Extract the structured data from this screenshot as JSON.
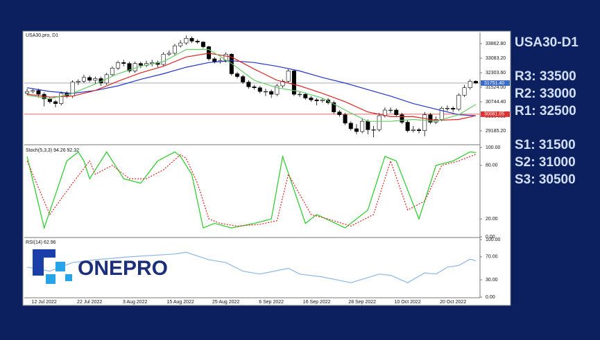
{
  "sidebar": {
    "title": "USA30-D1",
    "levels": [
      "R3: 33500",
      "R2: 33000",
      "R1: 32500",
      "S1: 31500",
      "S2: 31000",
      "S3: 30500"
    ]
  },
  "logo": "ONEPRO",
  "chart_data": [
    {
      "type": "candlestick",
      "title": "USA30.pro, D1",
      "categories": [
        null,
        null,
        null,
        "12 Jul 2022",
        null,
        null,
        null,
        null,
        null,
        null,
        null,
        "22 Jul 2022",
        null,
        null,
        null,
        null,
        null,
        null,
        null,
        "3 Aug 2022",
        null,
        null,
        null,
        null,
        null,
        null,
        null,
        "15 Aug 2022",
        null,
        null,
        null,
        null,
        null,
        null,
        null,
        "25 Aug 2022",
        null,
        null,
        null,
        null,
        null,
        null,
        null,
        "6 Sep 2022",
        null,
        null,
        null,
        null,
        null,
        null,
        null,
        "16 Sep 2022",
        null,
        null,
        null,
        null,
        null,
        null,
        null,
        "28 Sep 2022",
        null,
        null,
        null,
        null,
        null,
        null,
        null,
        "10 Oct 2022",
        null,
        null,
        null,
        null,
        null,
        null,
        null,
        "20 Oct 2022",
        null,
        null,
        null,
        null
      ],
      "open": [
        31200,
        31300,
        31350,
        31150,
        30900,
        30750,
        30650,
        31200,
        31050,
        31800,
        31850,
        32050,
        31900,
        31990,
        31750,
        32200,
        32550,
        32850,
        32800,
        32400,
        32800,
        32700,
        32800,
        32850,
        32750,
        33300,
        33350,
        33750,
        33900,
        34150,
        34000,
        33950,
        33700,
        33050,
        32900,
        32950,
        33300,
        32250,
        32100,
        31800,
        31550,
        31500,
        31300,
        31300,
        31150,
        31600,
        31850,
        32400,
        31150,
        31150,
        30950,
        30850,
        30800,
        30850,
        30700,
        30200,
        30050,
        29600,
        29300,
        29150,
        29700,
        29250,
        29250,
        30000,
        30300,
        30300,
        30050,
        29650,
        29200,
        29250,
        29200,
        30050,
        29650,
        29800,
        30400,
        30400,
        30350,
        31100,
        31500,
        31850
      ],
      "high": [
        31450,
        31450,
        31450,
        31250,
        31000,
        30850,
        31300,
        31300,
        31900,
        31950,
        32200,
        32150,
        32100,
        32100,
        32300,
        32650,
        32950,
        33000,
        32900,
        32900,
        32900,
        32950,
        33000,
        32950,
        33400,
        33500,
        33850,
        34050,
        34300,
        34250,
        34100,
        34000,
        33750,
        33150,
        33100,
        33400,
        33350,
        32350,
        32200,
        31900,
        31650,
        31600,
        31450,
        31400,
        31700,
        31950,
        32500,
        32450,
        31300,
        31250,
        31050,
        30950,
        30950,
        30950,
        30800,
        30300,
        30150,
        29700,
        29550,
        29850,
        29800,
        29450,
        30150,
        30450,
        30450,
        30400,
        30150,
        29750,
        29450,
        29350,
        30200,
        30150,
        29950,
        30500,
        30550,
        30500,
        31200,
        31650,
        31950,
        31900
      ],
      "low": [
        31100,
        31200,
        31000,
        30500,
        30650,
        30450,
        30550,
        30950,
        30950,
        31650,
        31750,
        31800,
        31700,
        31600,
        31650,
        32100,
        32450,
        32650,
        32300,
        32300,
        32550,
        32600,
        32650,
        32600,
        32650,
        33200,
        33250,
        33650,
        33800,
        33900,
        33850,
        33600,
        32950,
        32800,
        32800,
        32850,
        32150,
        32000,
        31700,
        31450,
        31400,
        31200,
        31050,
        30950,
        31050,
        31500,
        31750,
        31050,
        31000,
        30850,
        30750,
        30550,
        30700,
        30600,
        30100,
        29950,
        29500,
        29200,
        29000,
        29050,
        29000,
        28850,
        29150,
        29900,
        30150,
        29950,
        29550,
        29100,
        29100,
        29050,
        28900,
        29550,
        29550,
        29700,
        30250,
        30200,
        30250,
        31000,
        31400,
        31700
      ],
      "close": [
        31300,
        31350,
        31150,
        30900,
        30750,
        30650,
        31200,
        31050,
        31800,
        31850,
        32050,
        31900,
        31990,
        31750,
        32200,
        32550,
        32850,
        32800,
        32400,
        32800,
        32700,
        32800,
        32850,
        32750,
        33300,
        33350,
        33750,
        33900,
        34150,
        34000,
        33950,
        33700,
        33050,
        32900,
        32950,
        33300,
        32250,
        32100,
        31800,
        31550,
        31500,
        31300,
        31300,
        31150,
        31600,
        31850,
        32400,
        31150,
        31150,
        30950,
        30850,
        30800,
        30850,
        30700,
        30200,
        30050,
        29600,
        29300,
        29150,
        29700,
        29250,
        29250,
        30000,
        30300,
        30300,
        30050,
        29650,
        29200,
        29250,
        29200,
        30050,
        29650,
        29800,
        30400,
        30400,
        30350,
        31100,
        31500,
        31850,
        31750
      ],
      "series": [
        {
          "color": "#2233cc",
          "x": [
            0,
            4,
            8,
            12,
            16,
            20,
            24,
            28,
            32,
            36,
            40,
            44,
            48,
            52,
            56,
            60,
            64,
            68,
            72,
            76,
            79
          ],
          "values": [
            31500,
            31300,
            31200,
            31350,
            31600,
            31950,
            32250,
            32600,
            32850,
            32950,
            32850,
            32650,
            32400,
            32050,
            31750,
            31400,
            31050,
            30650,
            30350,
            30050,
            30000
          ]
        },
        {
          "color": "#dd2222",
          "x": [
            0,
            4,
            8,
            12,
            16,
            20,
            24,
            28,
            32,
            36,
            40,
            44,
            48,
            52,
            56,
            60,
            64,
            68,
            72,
            76,
            79
          ],
          "values": [
            31150,
            31000,
            31050,
            31350,
            31850,
            32300,
            32650,
            33150,
            33350,
            33150,
            32500,
            31900,
            31600,
            31200,
            30750,
            30200,
            29950,
            29950,
            29750,
            29800,
            30000
          ]
        },
        {
          "color": "#66cc66",
          "x": [
            0,
            4,
            8,
            12,
            16,
            20,
            24,
            28,
            32,
            36,
            40,
            44,
            48,
            52,
            56,
            60,
            64,
            68,
            72,
            76,
            79
          ],
          "values": [
            31100,
            30900,
            31200,
            31700,
            32250,
            32650,
            32900,
            33550,
            33550,
            32800,
            31900,
            31500,
            31300,
            30950,
            30300,
            29700,
            29700,
            29800,
            29700,
            30050,
            30600
          ]
        }
      ],
      "price_lines": [
        {
          "value": 31751.4,
          "label": "31751.40",
          "color": "#9aa0a8",
          "label_color": "#3b6cc8"
        },
        {
          "value": 30081.05,
          "label": "30081.05",
          "color": "#e03030",
          "label_color": "#e03030"
        }
      ],
      "ylim": [
        28480,
        34460
      ],
      "yticks": [
        {
          "value": 33862.8,
          "label": "33862.80"
        },
        {
          "value": 33083.2,
          "label": "33083.20"
        },
        {
          "value": 32303.6,
          "label": "32303.60"
        },
        {
          "value": 31524,
          "label": "31524.00"
        },
        {
          "value": 30744.4,
          "label": "30744.40"
        },
        {
          "value": 29964.8,
          "label": "29964.80"
        },
        {
          "value": 29185.2,
          "label": "29185.20"
        }
      ]
    },
    {
      "type": "line",
      "title": "Stoch(5,3,3) 94.26 92.32",
      "series": [
        {
          "color": "#22cc22",
          "x": [
            0,
            3,
            7,
            9,
            10,
            11,
            14,
            17,
            20,
            23,
            26,
            27,
            29,
            31,
            33,
            36,
            40,
            43,
            45,
            49,
            51,
            56,
            60,
            63,
            65,
            69,
            72,
            75,
            78,
            79
          ],
          "values": [
            90,
            10,
            85,
            95,
            85,
            65,
            95,
            65,
            60,
            85,
            95,
            90,
            70,
            10,
            15,
            10,
            15,
            20,
            90,
            15,
            25,
            10,
            30,
            90,
            85,
            20,
            80,
            85,
            95,
            94.26
          ]
        },
        {
          "color": "#e02020",
          "dash": "2,2",
          "x": [
            0,
            4,
            8,
            11,
            12,
            15,
            18,
            21,
            24,
            27,
            28,
            30,
            32,
            34,
            37,
            41,
            44,
            46,
            50,
            53,
            57,
            61,
            64,
            67,
            70,
            73,
            76,
            79
          ],
          "values": [
            85,
            25,
            60,
            85,
            70,
            80,
            65,
            65,
            75,
            92,
            88,
            60,
            20,
            15,
            12,
            14,
            18,
            70,
            25,
            20,
            12,
            25,
            85,
            30,
            40,
            80,
            85,
            92.32
          ]
        }
      ],
      "ylim": [
        0,
        100
      ],
      "yticks": [
        {
          "value": 100,
          "label": "100.00"
        },
        {
          "value": 80,
          "label": "80.00"
        },
        {
          "value": 20,
          "label": "20.00"
        },
        {
          "value": 0,
          "label": "0.00"
        }
      ]
    },
    {
      "type": "line",
      "title": "RSI(14) 62.96",
      "series": [
        {
          "color": "#8ab6e6",
          "x": [
            0,
            4,
            8,
            12,
            18,
            26,
            28,
            32,
            35,
            38,
            41,
            46,
            48,
            52,
            57,
            62,
            64,
            67,
            70,
            72,
            74,
            76,
            78,
            79
          ],
          "values": [
            52,
            45,
            60,
            65,
            70,
            75,
            78,
            65,
            60,
            45,
            40,
            50,
            40,
            35,
            25,
            40,
            38,
            25,
            42,
            40,
            52,
            55,
            66,
            62.96
          ]
        }
      ],
      "ylim": [
        0,
        100
      ],
      "yticks": [
        {
          "value": 100,
          "label": "100.00"
        },
        {
          "value": 70,
          "label": "70.00"
        },
        {
          "value": 30,
          "label": "30.00"
        },
        {
          "value": 0,
          "label": "0.00"
        }
      ]
    }
  ]
}
